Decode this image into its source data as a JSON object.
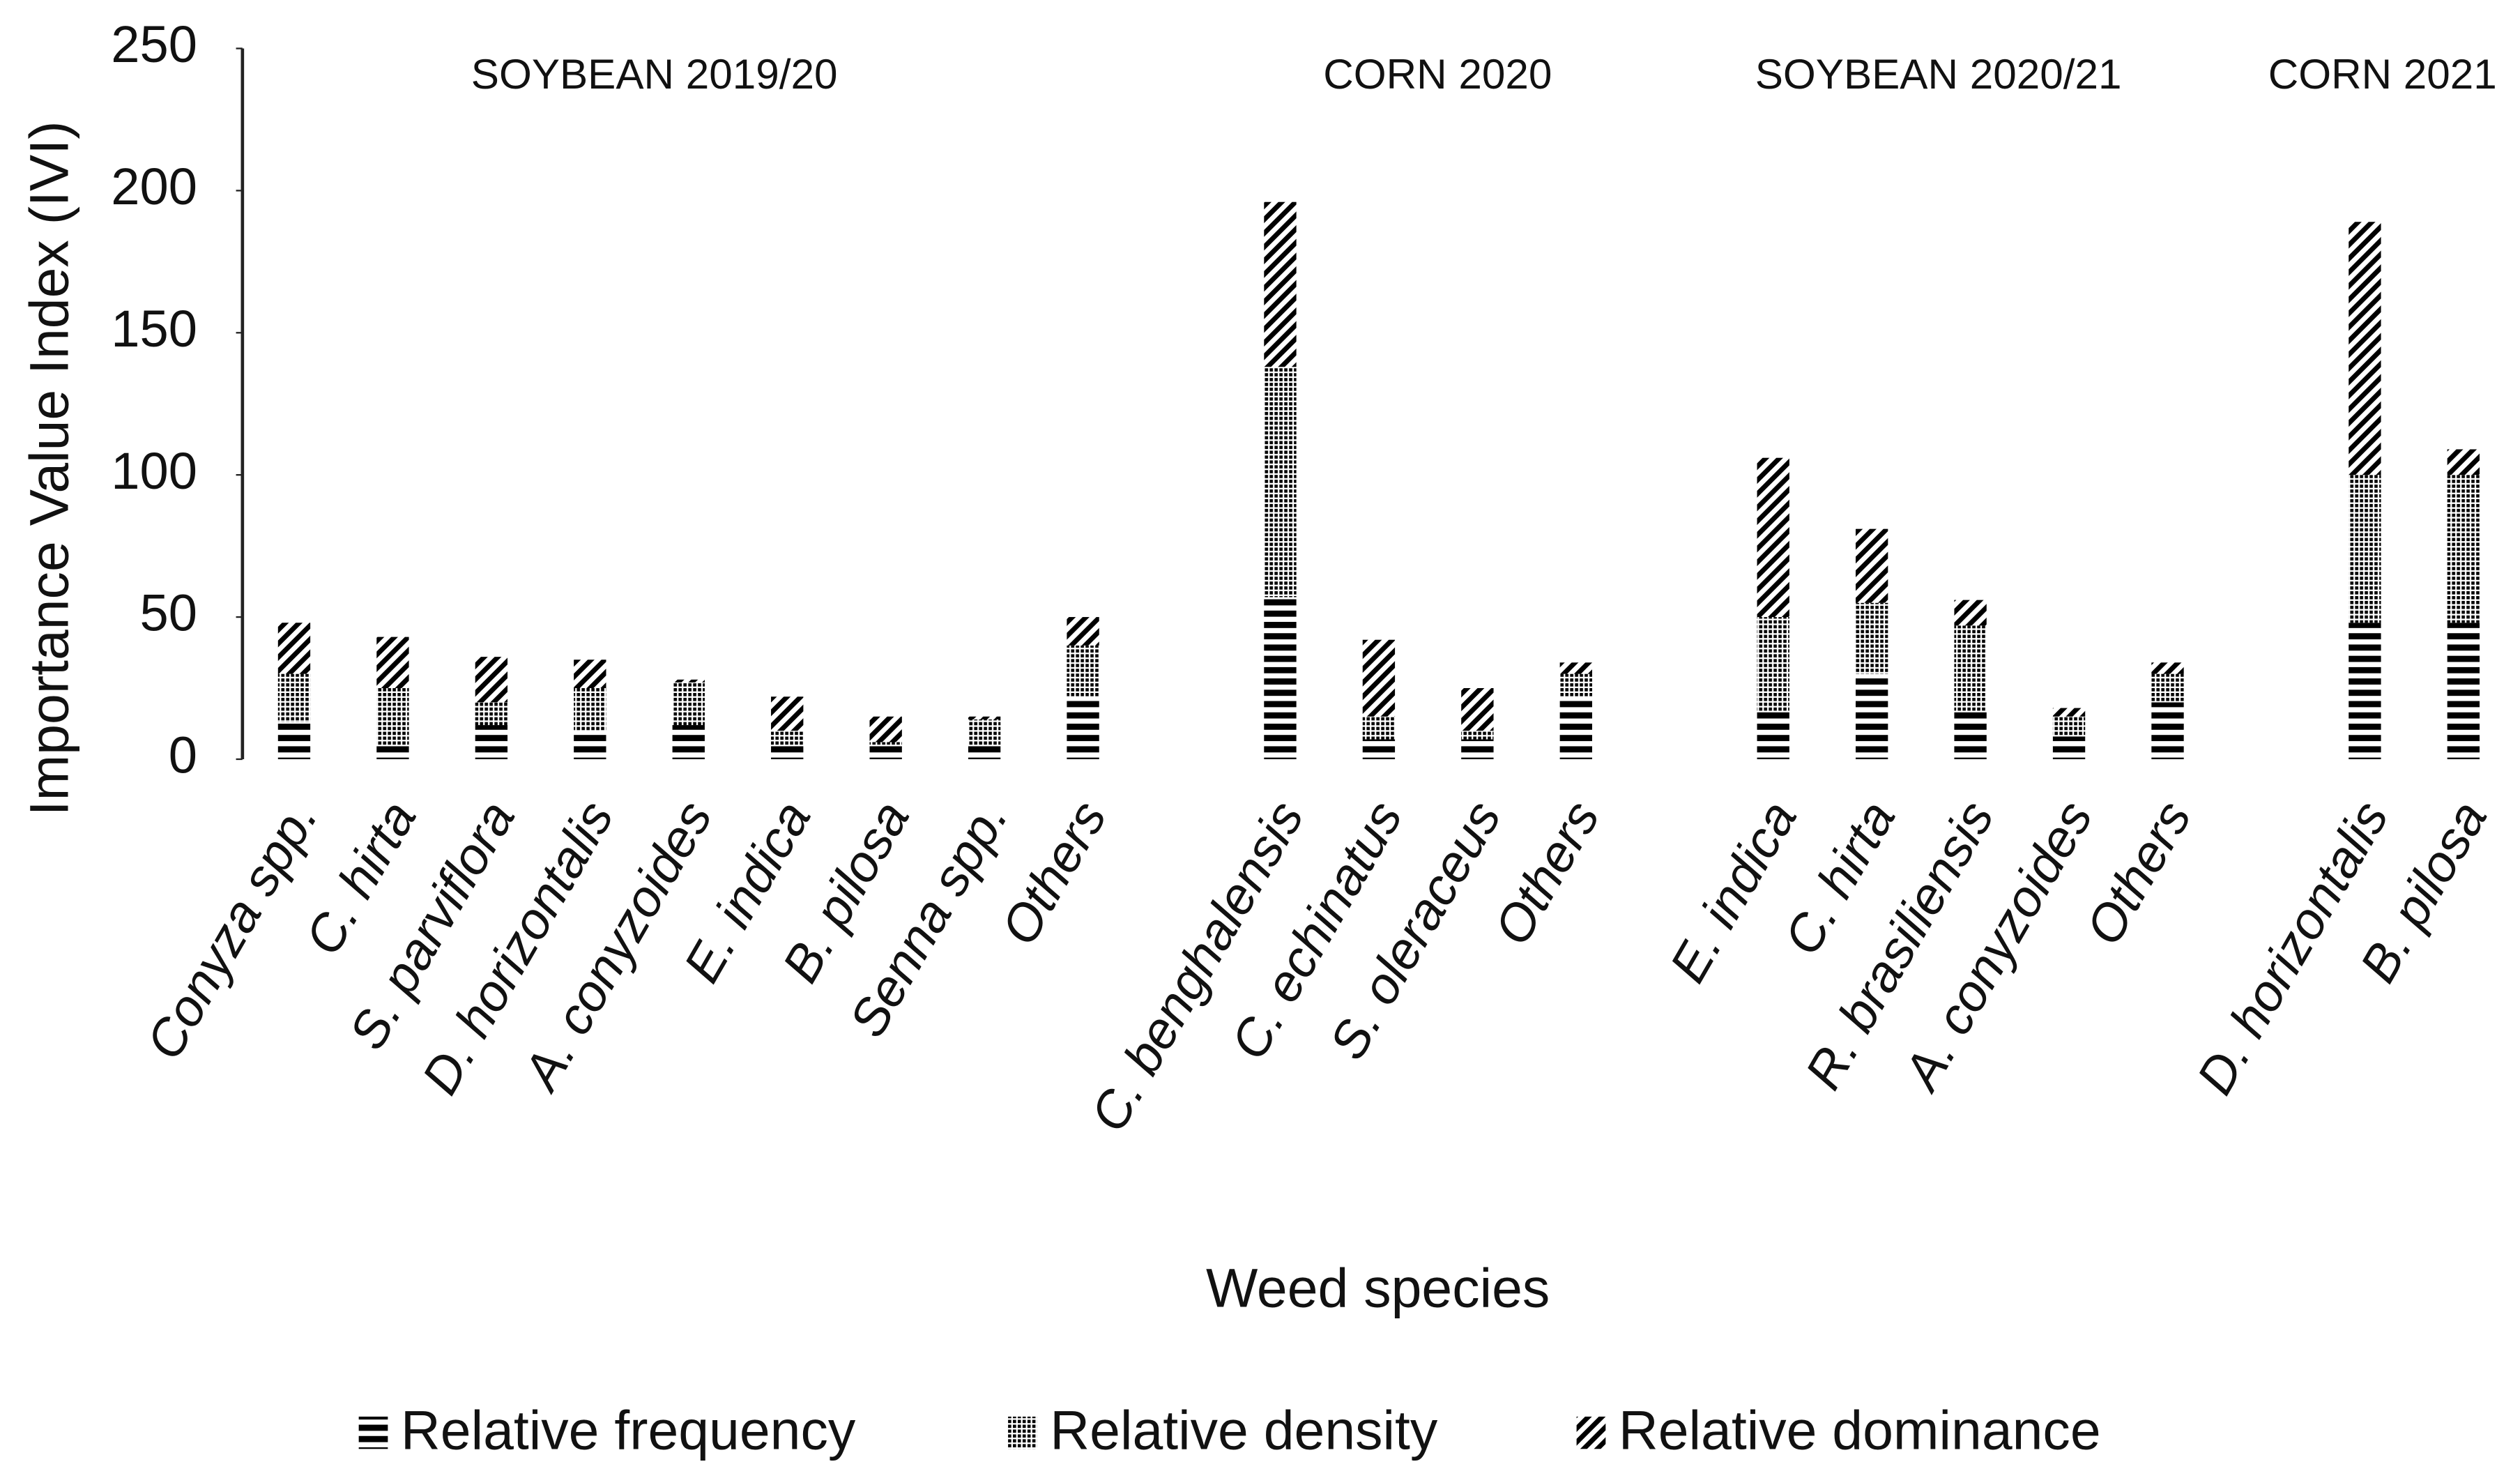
{
  "chart_data": {
    "type": "stacked_bar",
    "ylabel": "Importance Value Index (IVI)",
    "xlabel": "Weed species",
    "annotations": [
      "SOYBEAN 2019/20",
      "CORN 2020",
      "SOYBEAN 2020/21",
      "CORN 2021"
    ],
    "categories": [
      "Conyza spp.",
      "C. hirta",
      "S. parviflora",
      "D. horizontalis",
      "A. conyzoides",
      "E. indica",
      "B. pilosa",
      "Senna spp.",
      "Others",
      null,
      "C. benghalensis",
      "C. echinatus",
      "S. oleraceus",
      "Others",
      null,
      "E. indica",
      "C. hirta",
      "R. brasiliensis",
      "A. conyzoides",
      "Others",
      null,
      "D. horizontalis",
      "B. pilosa"
    ],
    "series": [
      {
        "name": "Relative frequency",
        "color": "#000000",
        "pattern": "horizontal",
        "values": [
          13,
          5,
          12,
          10,
          12,
          5,
          5,
          5,
          22,
          null,
          57,
          7,
          7,
          22,
          null,
          17,
          30,
          17,
          8,
          20,
          null,
          48,
          48
        ]
      },
      {
        "name": "Relative density",
        "color": "#000000",
        "pattern": "dots",
        "values": [
          17,
          20,
          8,
          15,
          15,
          5,
          1,
          9,
          18,
          null,
          81,
          8,
          3,
          8,
          null,
          33,
          25,
          30,
          7,
          10,
          null,
          52,
          52
        ]
      },
      {
        "name": "Relative dominance",
        "color": "#000000",
        "pattern": "diagonal",
        "values": [
          18,
          18,
          16,
          10,
          1,
          12,
          9,
          1,
          10,
          null,
          58,
          27,
          15,
          4,
          null,
          56,
          26,
          9,
          3,
          4,
          null,
          89,
          9
        ]
      }
    ],
    "ylim": [
      0,
      250
    ],
    "yticks": [
      0,
      50,
      100,
      150,
      200,
      250
    ],
    "legend": "bottom"
  }
}
